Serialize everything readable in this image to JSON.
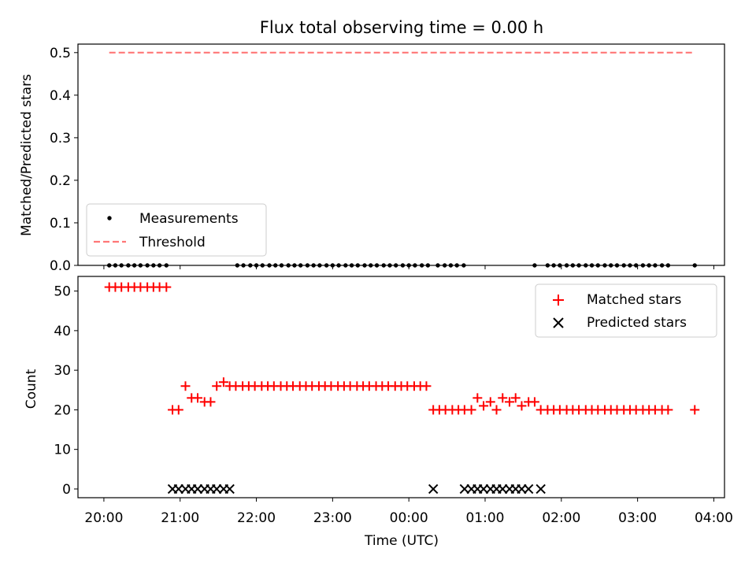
{
  "chart_data": [
    {
      "type": "scatter",
      "title": "Flux total observing time = 0.00 h",
      "ylabel": "Matched/Predicted stars",
      "xlabel": "",
      "ylim": [
        0,
        0.52
      ],
      "yticks": [
        0.0,
        0.1,
        0.2,
        0.3,
        0.4,
        0.5
      ],
      "ytick_labels": [
        "0.0",
        "0.1",
        "0.2",
        "0.3",
        "0.4",
        "0.5"
      ],
      "xlim_hours": [
        -0.34,
        8.14
      ],
      "x_hours_note": "hours after 20:00 UTC",
      "legend": {
        "placement": "lower-left",
        "entries": [
          "Measurements",
          "Threshold"
        ]
      },
      "series": [
        {
          "name": "Measurements",
          "marker": "dot",
          "color": "#000000",
          "x_hours": [
            0.07,
            0.15,
            0.23,
            0.32,
            0.4,
            0.48,
            0.57,
            0.65,
            0.73,
            0.82,
            1.75,
            1.83,
            1.92,
            2.0,
            2.08,
            2.17,
            2.25,
            2.33,
            2.42,
            2.5,
            2.58,
            2.67,
            2.75,
            2.83,
            2.92,
            3.0,
            3.08,
            3.17,
            3.25,
            3.33,
            3.42,
            3.5,
            3.58,
            3.67,
            3.75,
            3.83,
            3.92,
            4.0,
            4.08,
            4.17,
            4.25,
            4.38,
            4.47,
            4.55,
            4.63,
            4.72,
            5.65,
            5.82,
            5.9,
            5.98,
            6.07,
            6.15,
            6.23,
            6.32,
            6.4,
            6.48,
            6.57,
            6.65,
            6.73,
            6.82,
            6.9,
            6.98,
            7.07,
            7.15,
            7.23,
            7.32,
            7.4,
            7.75
          ],
          "y_constant": 0.0
        },
        {
          "name": "Threshold",
          "style": "dashed",
          "color": "#ff7777",
          "x_hours": [
            0.07,
            7.75
          ],
          "y": [
            0.5,
            0.5
          ]
        }
      ]
    },
    {
      "type": "scatter",
      "title": "",
      "ylabel": "Count",
      "xlabel": "Time (UTC)",
      "ylim": [
        -2.2,
        53.7
      ],
      "yticks": [
        0,
        10,
        20,
        30,
        40,
        50
      ],
      "ytick_labels": [
        "0",
        "10",
        "20",
        "30",
        "40",
        "50"
      ],
      "xlim_hours": [
        -0.34,
        8.14
      ],
      "xticks_hours": [
        0,
        1,
        2,
        3,
        4,
        5,
        6,
        7,
        8
      ],
      "xtick_labels": [
        "20:00",
        "21:00",
        "22:00",
        "23:00",
        "00:00",
        "01:00",
        "02:00",
        "03:00",
        "04:00"
      ],
      "legend": {
        "placement": "upper-right",
        "entries": [
          "Matched stars",
          "Predicted stars"
        ]
      },
      "series": [
        {
          "name": "Matched stars",
          "marker": "plus",
          "color": "#ff0000",
          "points": [
            [
              0.07,
              51
            ],
            [
              0.15,
              51
            ],
            [
              0.23,
              51
            ],
            [
              0.32,
              51
            ],
            [
              0.4,
              51
            ],
            [
              0.48,
              51
            ],
            [
              0.57,
              51
            ],
            [
              0.65,
              51
            ],
            [
              0.73,
              51
            ],
            [
              0.82,
              51
            ],
            [
              0.9,
              20
            ],
            [
              0.98,
              20
            ],
            [
              1.07,
              26
            ],
            [
              1.15,
              23
            ],
            [
              1.23,
              23
            ],
            [
              1.32,
              22
            ],
            [
              1.4,
              22
            ],
            [
              1.48,
              26
            ],
            [
              1.57,
              27
            ],
            [
              1.65,
              26
            ],
            [
              1.73,
              26
            ],
            [
              1.82,
              26
            ],
            [
              1.9,
              26
            ],
            [
              1.98,
              26
            ],
            [
              2.07,
              26
            ],
            [
              2.15,
              26
            ],
            [
              2.23,
              26
            ],
            [
              2.32,
              26
            ],
            [
              2.4,
              26
            ],
            [
              2.48,
              26
            ],
            [
              2.57,
              26
            ],
            [
              2.65,
              26
            ],
            [
              2.73,
              26
            ],
            [
              2.82,
              26
            ],
            [
              2.9,
              26
            ],
            [
              2.98,
              26
            ],
            [
              3.07,
              26
            ],
            [
              3.15,
              26
            ],
            [
              3.23,
              26
            ],
            [
              3.32,
              26
            ],
            [
              3.4,
              26
            ],
            [
              3.48,
              26
            ],
            [
              3.57,
              26
            ],
            [
              3.65,
              26
            ],
            [
              3.73,
              26
            ],
            [
              3.82,
              26
            ],
            [
              3.9,
              26
            ],
            [
              3.98,
              26
            ],
            [
              4.07,
              26
            ],
            [
              4.15,
              26
            ],
            [
              4.23,
              26
            ],
            [
              4.32,
              20
            ],
            [
              4.4,
              20
            ],
            [
              4.48,
              20
            ],
            [
              4.57,
              20
            ],
            [
              4.65,
              20
            ],
            [
              4.73,
              20
            ],
            [
              4.82,
              20
            ],
            [
              4.9,
              23
            ],
            [
              4.98,
              21
            ],
            [
              5.07,
              22
            ],
            [
              5.15,
              20
            ],
            [
              5.23,
              23
            ],
            [
              5.32,
              22
            ],
            [
              5.4,
              23
            ],
            [
              5.48,
              21
            ],
            [
              5.57,
              22
            ],
            [
              5.65,
              22
            ],
            [
              5.73,
              20
            ],
            [
              5.82,
              20
            ],
            [
              5.9,
              20
            ],
            [
              5.98,
              20
            ],
            [
              6.07,
              20
            ],
            [
              6.15,
              20
            ],
            [
              6.23,
              20
            ],
            [
              6.32,
              20
            ],
            [
              6.4,
              20
            ],
            [
              6.48,
              20
            ],
            [
              6.57,
              20
            ],
            [
              6.65,
              20
            ],
            [
              6.73,
              20
            ],
            [
              6.82,
              20
            ],
            [
              6.9,
              20
            ],
            [
              6.98,
              20
            ],
            [
              7.07,
              20
            ],
            [
              7.15,
              20
            ],
            [
              7.23,
              20
            ],
            [
              7.32,
              20
            ],
            [
              7.4,
              20
            ],
            [
              7.75,
              20
            ]
          ]
        },
        {
          "name": "Predicted stars",
          "marker": "x",
          "color": "#000000",
          "points": [
            [
              0.9,
              0
            ],
            [
              0.98,
              0
            ],
            [
              1.07,
              0
            ],
            [
              1.15,
              0
            ],
            [
              1.23,
              0
            ],
            [
              1.32,
              0
            ],
            [
              1.4,
              0
            ],
            [
              1.48,
              0
            ],
            [
              1.57,
              0
            ],
            [
              1.65,
              0
            ],
            [
              4.32,
              0
            ],
            [
              4.73,
              0
            ],
            [
              4.82,
              0
            ],
            [
              4.9,
              0
            ],
            [
              4.98,
              0
            ],
            [
              5.07,
              0
            ],
            [
              5.15,
              0
            ],
            [
              5.23,
              0
            ],
            [
              5.32,
              0
            ],
            [
              5.4,
              0
            ],
            [
              5.48,
              0
            ],
            [
              5.57,
              0
            ],
            [
              5.73,
              0
            ]
          ]
        }
      ]
    }
  ]
}
